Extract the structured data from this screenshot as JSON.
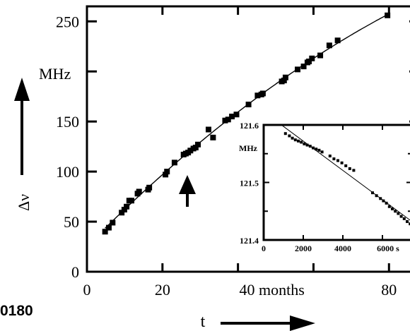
{
  "chart_data": [
    {
      "type": "scatter",
      "title": "",
      "xlabel": "t",
      "ylabel": "Δν",
      "y_unit_label": "MHz",
      "x_tick_labels": [
        "0",
        "20",
        "40 months",
        "80"
      ],
      "x_ticks": [
        0,
        20,
        40,
        80
      ],
      "y_ticks": [
        0,
        50,
        100,
        150,
        250
      ],
      "y_tick_labels": [
        "0",
        "50",
        "100",
        "150",
        "250"
      ],
      "xlim": [
        0,
        88
      ],
      "ylim": [
        0,
        265
      ],
      "grid": false,
      "fit_line": true,
      "side_label": "0180",
      "annotation": "upward arrow marking a data point near t = 28 months",
      "series": [
        {
          "values": [
            [
              4.8,
              40
            ],
            [
              5.8,
              44
            ],
            [
              6.8,
              49
            ],
            [
              9.2,
              59
            ],
            [
              9.9,
              62
            ],
            [
              10.5,
              65
            ],
            [
              11.2,
              71
            ],
            [
              11.8,
              71
            ],
            [
              13.4,
              78
            ],
            [
              13.8,
              80
            ],
            [
              16.2,
              82
            ],
            [
              16.5,
              84
            ],
            [
              20.8,
              97
            ],
            [
              21.2,
              100
            ],
            [
              23.2,
              109
            ],
            [
              25.6,
              117
            ],
            [
              26.2,
              118
            ],
            [
              26.8,
              119
            ],
            [
              27.4,
              121
            ],
            [
              28.2,
              123
            ],
            [
              28.8,
              124
            ],
            [
              29.4,
              127
            ],
            [
              32.2,
              142
            ],
            [
              33.4,
              134
            ],
            [
              36.6,
              151
            ],
            [
              37.4,
              152
            ],
            [
              38.4,
              155
            ],
            [
              39.6,
              157
            ],
            [
              42.8,
              167
            ],
            [
              45.2,
              176
            ],
            [
              46.2,
              177
            ],
            [
              46.6,
              178
            ],
            [
              51.6,
              190
            ],
            [
              52.2,
              191
            ],
            [
              52.6,
              194
            ],
            [
              55.8,
              202
            ],
            [
              57.4,
              205
            ],
            [
              58.4,
              209
            ],
            [
              58.8,
              210
            ],
            [
              59.6,
              213
            ],
            [
              61.8,
              216
            ],
            [
              64.2,
              226
            ],
            [
              66.4,
              231
            ],
            [
              79.6,
              256
            ]
          ]
        }
      ]
    },
    {
      "type": "scatter",
      "title": "",
      "xlabel": "",
      "ylabel": "",
      "y_unit_label": "MHz",
      "x_tick_labels": [
        "0",
        "2000",
        "4000",
        "6000 s"
      ],
      "x_ticks": [
        0,
        2000,
        4000,
        6000
      ],
      "y_tick_labels": [
        "121.4",
        "121.5",
        "121.6"
      ],
      "y_ticks": [
        121.4,
        121.5,
        121.6
      ],
      "xlim": [
        0,
        7500
      ],
      "ylim": [
        121.4,
        121.6
      ],
      "grid": false,
      "fit_line": true,
      "series": [
        {
          "values": [
            [
              1100,
              121.585
            ],
            [
              1300,
              121.581
            ],
            [
              1450,
              121.577
            ],
            [
              1600,
              121.574
            ],
            [
              1750,
              121.572
            ],
            [
              1900,
              121.57
            ],
            [
              2050,
              121.567
            ],
            [
              2200,
              121.565
            ],
            [
              2350,
              121.563
            ],
            [
              2500,
              121.56
            ],
            [
              2650,
              121.558
            ],
            [
              2800,
              121.556
            ],
            [
              2950,
              121.553
            ],
            [
              3350,
              121.546
            ],
            [
              3550,
              121.541
            ],
            [
              3750,
              121.538
            ],
            [
              3950,
              121.534
            ],
            [
              4150,
              121.529
            ],
            [
              4350,
              121.524
            ],
            [
              4550,
              121.521
            ],
            [
              5500,
              121.482
            ],
            [
              5700,
              121.477
            ],
            [
              5900,
              121.472
            ],
            [
              6050,
              121.468
            ],
            [
              6200,
              121.464
            ],
            [
              6350,
              121.458
            ],
            [
              6500,
              121.454
            ],
            [
              6650,
              121.45
            ],
            [
              6800,
              121.446
            ],
            [
              6950,
              121.441
            ],
            [
              7100,
              121.437
            ],
            [
              7250,
              121.432
            ],
            [
              7400,
              121.428
            ]
          ]
        }
      ]
    }
  ]
}
